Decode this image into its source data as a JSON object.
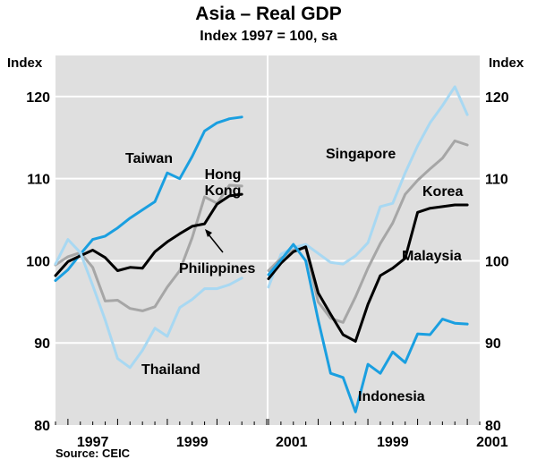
{
  "title": "Asia – Real GDP",
  "subtitle": "Index 1997 = 100, sa",
  "unit_left": "Index",
  "unit_right": "Index",
  "source": "Source: CEIC",
  "colors": {
    "background": "#ffffff",
    "panel": "#dfdfdf",
    "grid": "#ffffff",
    "dark_blue": "#1a9fe0",
    "light_blue": "#a8d8f2",
    "black": "#000000",
    "grey": "#a6a6a6"
  },
  "chart_data": [
    {
      "type": "line",
      "panel": "left",
      "x_tick_labels": [
        "1997",
        "1999",
        "2001"
      ],
      "ylim": [
        80,
        125
      ],
      "y_ticks": [
        80,
        90,
        100,
        110,
        120
      ],
      "grid": true,
      "series": [
        {
          "name": "Taiwan",
          "color": "dark_blue",
          "x": [
            1996.75,
            1997.0,
            1997.25,
            1997.5,
            1997.75,
            1998.0,
            1998.25,
            1998.5,
            1998.75,
            1999.0,
            1999.25,
            1999.5,
            1999.75,
            2000.0,
            2000.25,
            2000.5
          ],
          "values": [
            97.6,
            98.9,
            100.8,
            102.6,
            103.0,
            104.0,
            105.2,
            106.2,
            107.2,
            110.7,
            110.0,
            112.7,
            115.8,
            116.8,
            117.3,
            117.5
          ]
        },
        {
          "name": "Hong Kong",
          "color": "grey",
          "x": [
            1996.75,
            1997.0,
            1997.25,
            1997.5,
            1997.75,
            1998.0,
            1998.25,
            1998.5,
            1998.75,
            1999.0,
            1999.25,
            1999.5,
            1999.75,
            2000.0,
            2000.25,
            2000.5
          ],
          "values": [
            99.5,
            100.5,
            101.0,
            99.2,
            95.1,
            95.2,
            94.2,
            93.9,
            94.4,
            96.8,
            98.8,
            102.8,
            107.8,
            107.0,
            109.2,
            109.1
          ]
        },
        {
          "name": "Philippines",
          "color": "black",
          "x": [
            1996.75,
            1997.0,
            1997.25,
            1997.5,
            1997.75,
            1998.0,
            1998.25,
            1998.5,
            1998.75,
            1999.0,
            1999.25,
            1999.5,
            1999.75,
            2000.0,
            2000.25,
            2000.5
          ],
          "values": [
            98.2,
            99.9,
            100.6,
            101.3,
            100.4,
            98.8,
            99.2,
            99.1,
            101.1,
            102.3,
            103.3,
            104.2,
            104.5,
            106.9,
            107.9,
            108.1
          ]
        },
        {
          "name": "Thailand",
          "color": "light_blue",
          "x": [
            1996.75,
            1997.0,
            1997.25,
            1997.5,
            1997.75,
            1998.0,
            1998.25,
            1998.5,
            1998.75,
            1999.0,
            1999.25,
            1999.5,
            1999.75,
            2000.0,
            2000.25,
            2000.5
          ],
          "values": [
            99.6,
            102.6,
            101.0,
            97.0,
            92.8,
            88.1,
            87.0,
            89.1,
            91.8,
            90.8,
            94.3,
            95.3,
            96.6,
            96.6,
            97.1,
            97.9
          ]
        }
      ]
    },
    {
      "type": "line",
      "panel": "right",
      "x_tick_labels": [
        "1999",
        "2001"
      ],
      "ylim": [
        80,
        125
      ],
      "y_ticks": [
        80,
        90,
        100,
        110,
        120
      ],
      "grid": true,
      "series": [
        {
          "name": "Singapore",
          "color": "light_blue",
          "x": [
            1997.0,
            1997.25,
            1997.5,
            1997.75,
            1998.0,
            1998.25,
            1998.5,
            1998.75,
            1999.0,
            1999.25,
            1999.5,
            1999.75,
            2000.0,
            2000.25,
            2000.5,
            2000.75,
            2001.0
          ],
          "values": [
            96.8,
            100.8,
            101.6,
            102.0,
            100.9,
            99.8,
            99.6,
            100.6,
            102.2,
            106.6,
            107.0,
            110.7,
            114.0,
            116.8,
            118.9,
            121.2,
            117.8
          ]
        },
        {
          "name": "Korea",
          "color": "grey",
          "x": [
            1997.0,
            1997.25,
            1997.5,
            1997.75,
            1998.0,
            1998.25,
            1998.5,
            1998.75,
            1999.0,
            1999.25,
            1999.5,
            1999.75,
            2000.0,
            2000.25,
            2000.5,
            2000.75,
            2001.0
          ],
          "values": [
            98.8,
            100.3,
            101.3,
            101.6,
            95.0,
            93.0,
            92.5,
            95.6,
            99.1,
            102.1,
            104.6,
            108.1,
            109.8,
            111.2,
            112.5,
            114.6,
            114.1
          ]
        },
        {
          "name": "Malaysia",
          "color": "black",
          "x": [
            1997.0,
            1997.25,
            1997.5,
            1997.75,
            1998.0,
            1998.25,
            1998.5,
            1998.75,
            1999.0,
            1999.25,
            1999.5,
            1999.75,
            2000.0,
            2000.25,
            2000.5,
            2000.75,
            2001.0
          ],
          "values": [
            97.8,
            99.7,
            101.1,
            101.7,
            96.1,
            93.5,
            91.0,
            90.2,
            94.7,
            98.2,
            99.1,
            100.3,
            105.9,
            106.4,
            106.6,
            106.8,
            106.8
          ]
        },
        {
          "name": "Indonesia",
          "color": "dark_blue",
          "x": [
            1997.0,
            1997.25,
            1997.5,
            1997.75,
            1998.0,
            1998.25,
            1998.5,
            1998.75,
            1999.0,
            1999.25,
            1999.5,
            1999.75,
            2000.0,
            2000.25,
            2000.5,
            2000.75,
            2001.0
          ],
          "values": [
            98.3,
            100.1,
            102.0,
            100.0,
            92.8,
            86.3,
            85.8,
            81.6,
            87.4,
            86.3,
            88.9,
            87.6,
            91.1,
            91.0,
            92.9,
            92.4,
            92.3
          ]
        }
      ]
    }
  ],
  "labels": [
    {
      "text": "Taiwan",
      "series": "Taiwan",
      "panel": "left"
    },
    {
      "text": "Hong",
      "series": "Hong Kong",
      "panel": "left"
    },
    {
      "text": "Kong",
      "series": "Hong Kong",
      "panel": "left"
    },
    {
      "text": "Philippines",
      "series": "Philippines",
      "panel": "left"
    },
    {
      "text": "Thailand",
      "series": "Thailand",
      "panel": "left"
    },
    {
      "text": "Singapore",
      "series": "Singapore",
      "panel": "right"
    },
    {
      "text": "Korea",
      "series": "Korea",
      "panel": "right"
    },
    {
      "text": "Malaysia",
      "series": "Malaysia",
      "panel": "right"
    },
    {
      "text": "Indonesia",
      "series": "Indonesia",
      "panel": "right"
    }
  ]
}
